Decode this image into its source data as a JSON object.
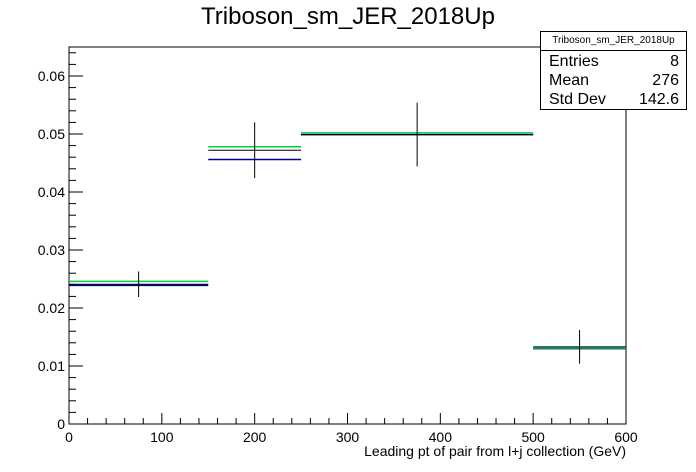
{
  "chart_data": {
    "type": "histogram",
    "title": "Triboson_sm_JER_2018Up",
    "xlabel": "Leading pt of pair from l+j collection (GeV)",
    "ylabel": "",
    "xlim": [
      0,
      600
    ],
    "ylim": [
      0,
      0.065
    ],
    "x_ticks": [
      0,
      100,
      200,
      300,
      400,
      500,
      600
    ],
    "y_ticks": [
      0,
      0.01,
      0.02,
      0.03,
      0.04,
      0.05,
      0.06
    ],
    "grid": false,
    "bins": [
      {
        "low": 0,
        "high": 150
      },
      {
        "low": 150,
        "high": 250
      },
      {
        "low": 250,
        "high": 500
      },
      {
        "low": 500,
        "high": 600
      }
    ],
    "series": [
      {
        "color": "#000000",
        "values": [
          0.0241,
          0.0472,
          0.0499,
          0.0133
        ],
        "errors": [
          0.0022,
          0.0048,
          0.0055,
          0.0029
        ],
        "style": "error-cross"
      },
      {
        "color": "#00008b",
        "values": [
          0.0239,
          0.0456,
          0.0499,
          0.013
        ],
        "style": "step"
      },
      {
        "color": "#00cc44",
        "values": [
          0.0246,
          0.0478,
          0.0502,
          0.0131
        ],
        "style": "step"
      }
    ],
    "legend": {
      "placement": "top-right",
      "title": "Triboson_sm_JER_2018Up",
      "entries": [
        {
          "label": "Entries",
          "value": "8"
        },
        {
          "label": "Mean",
          "value": "276"
        },
        {
          "label": "Std Dev",
          "value": "142.6"
        }
      ]
    }
  }
}
